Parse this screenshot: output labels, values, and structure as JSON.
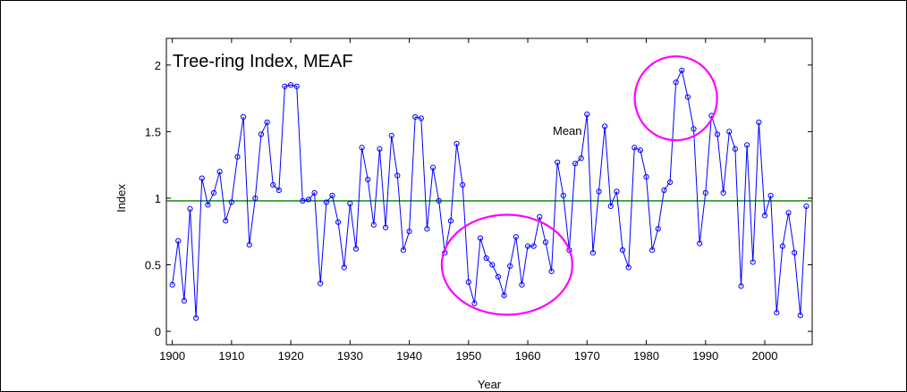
{
  "chart_data": {
    "type": "line",
    "title": "Tree-ring Index, MEAF",
    "xlabel": "Year",
    "ylabel": "Index",
    "xlim": [
      1899,
      2008
    ],
    "ylim": [
      -0.1,
      2.2
    ],
    "xticks": [
      1900,
      1910,
      1920,
      1930,
      1940,
      1950,
      1960,
      1970,
      1980,
      1990,
      2000
    ],
    "yticks": [
      0,
      0.5,
      1,
      1.5,
      2
    ],
    "xtick_labels": [
      "1900",
      "1910",
      "1920",
      "1930",
      "1940",
      "1950",
      "1960",
      "1970",
      "1980",
      "1990",
      "2000"
    ],
    "ytick_labels": [
      "0",
      "0.5",
      "1",
      "1.5",
      "2"
    ],
    "grid": false,
    "mean": 0.98,
    "mean_label": "Mean",
    "highlights": [
      {
        "center_year": 1956.5,
        "center_value": 0.5
      },
      {
        "center_year": 1985,
        "center_value": 1.75
      }
    ],
    "series": [
      {
        "color": "#0000ff",
        "mean_color": "#008000",
        "highlight_color": "#ff00ff",
        "x": [
          1900,
          1901,
          1902,
          1903,
          1904,
          1905,
          1906,
          1907,
          1908,
          1909,
          1910,
          1911,
          1912,
          1913,
          1914,
          1915,
          1916,
          1917,
          1918,
          1919,
          1920,
          1921,
          1922,
          1923,
          1924,
          1925,
          1926,
          1927,
          1928,
          1929,
          1930,
          1931,
          1932,
          1933,
          1934,
          1935,
          1936,
          1937,
          1938,
          1939,
          1940,
          1941,
          1942,
          1943,
          1944,
          1945,
          1946,
          1947,
          1948,
          1949,
          1950,
          1951,
          1952,
          1953,
          1954,
          1955,
          1956,
          1957,
          1958,
          1959,
          1960,
          1961,
          1962,
          1963,
          1964,
          1965,
          1966,
          1967,
          1968,
          1969,
          1970,
          1971,
          1972,
          1973,
          1974,
          1975,
          1976,
          1977,
          1978,
          1979,
          1980,
          1981,
          1982,
          1983,
          1984,
          1985,
          1986,
          1987,
          1988,
          1989,
          1990,
          1991,
          1992,
          1993,
          1994,
          1995,
          1996,
          1997,
          1998,
          1999,
          2000,
          2001,
          2002,
          2003,
          2004,
          2005,
          2006,
          2007
        ],
        "values": [
          0.35,
          0.68,
          0.23,
          0.92,
          0.1,
          1.15,
          0.95,
          1.04,
          1.2,
          0.83,
          0.97,
          1.31,
          1.61,
          0.65,
          1.0,
          1.48,
          1.57,
          1.1,
          1.06,
          1.84,
          1.85,
          1.84,
          0.98,
          0.99,
          1.04,
          0.36,
          0.97,
          1.02,
          0.82,
          0.48,
          0.96,
          0.62,
          1.38,
          1.14,
          0.8,
          1.37,
          0.78,
          1.47,
          1.17,
          0.61,
          0.75,
          1.61,
          1.6,
          0.77,
          1.23,
          0.98,
          0.59,
          0.83,
          1.41,
          1.1,
          0.37,
          0.21,
          0.7,
          0.55,
          0.5,
          0.41,
          0.27,
          0.49,
          0.71,
          0.35,
          0.64,
          0.64,
          0.86,
          0.67,
          0.45,
          1.27,
          1.02,
          0.61,
          1.26,
          1.3,
          1.63,
          0.59,
          1.05,
          1.54,
          0.94,
          1.05,
          0.61,
          0.48,
          1.38,
          1.36,
          1.16,
          0.61,
          0.77,
          1.06,
          1.12,
          1.87,
          1.96,
          1.76,
          1.52,
          0.66,
          1.04,
          1.62,
          1.48,
          1.04,
          1.5,
          1.37,
          0.34,
          1.4,
          0.52,
          1.57,
          0.87,
          1.02,
          0.14,
          0.64,
          0.89,
          0.59,
          0.12,
          0.94
        ]
      }
    ]
  }
}
